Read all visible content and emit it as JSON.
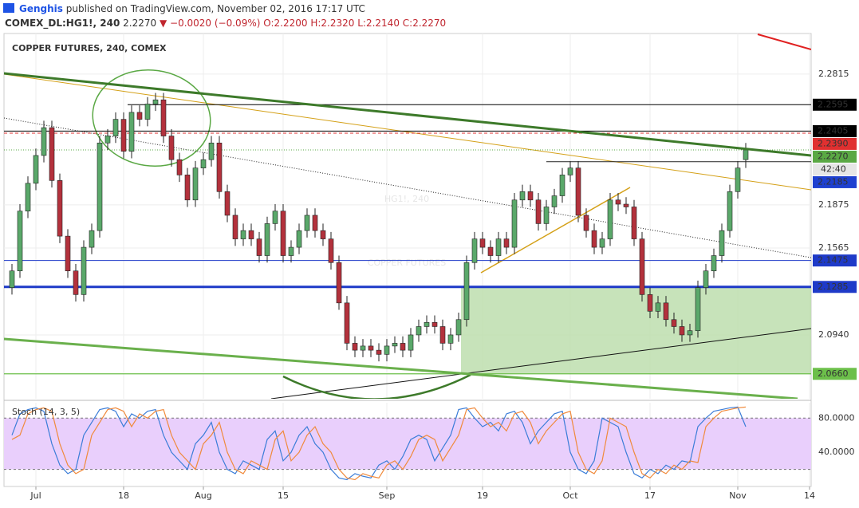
{
  "header": {
    "author": "Genghis",
    "published": "published on TradingView.com, November 02, 2016 17:17 UTC",
    "symbol": "COMEX_DL:HG1!, 240",
    "last": "2.2270",
    "change": "▼ −0.0020 (−0.09%)",
    "ohlc": [
      "O:2.2200",
      "H:2.2320",
      "L:2.2140",
      "C:2.2270"
    ]
  },
  "chart_data": [
    {
      "type": "candlestick",
      "title": "COPPER FUTURES, 240, COMEX",
      "watermark": [
        "HG1!, 240",
        "COPPER FUTURES"
      ],
      "categories": [
        null,
        null,
        null,
        "Jul",
        null,
        null,
        null,
        null,
        null,
        null,
        null,
        null,
        null,
        null,
        "18",
        null,
        null,
        null,
        null,
        null,
        null,
        null,
        null,
        null,
        "Aug",
        null,
        null,
        null,
        null,
        null,
        null,
        null,
        null,
        null,
        "15",
        null,
        null,
        null,
        null,
        null,
        null,
        null,
        null,
        null,
        null,
        null,
        null,
        "Sep",
        null,
        null,
        null,
        null,
        null,
        null,
        null,
        null,
        null,
        null,
        null,
        "19",
        null,
        null,
        null,
        null,
        null,
        null,
        null,
        null,
        null,
        null,
        "Oct",
        null,
        null,
        null,
        null,
        null,
        null,
        null,
        null,
        null,
        "17",
        null,
        null,
        null,
        null,
        null,
        null,
        null,
        null,
        null,
        null,
        "Nov",
        null,
        null,
        null,
        null,
        null,
        null,
        null,
        null,
        "14"
      ],
      "open": [
        2.128,
        2.14,
        2.183,
        2.203,
        2.223,
        2.243,
        2.205,
        2.165,
        2.14,
        2.123,
        2.157,
        2.169,
        2.232,
        2.237,
        2.249,
        2.226,
        2.254,
        2.249,
        2.26,
        2.263,
        2.237,
        2.22,
        2.209,
        2.191,
        2.214,
        2.22,
        2.232,
        2.197,
        2.18,
        2.163,
        2.169,
        2.163,
        2.151,
        2.174,
        2.183,
        2.151,
        2.157,
        2.169,
        2.18,
        2.169,
        2.163,
        2.146,
        2.117,
        2.088,
        2.083,
        2.086,
        2.083,
        2.08,
        2.086,
        2.088,
        2.083,
        2.094,
        2.1,
        2.103,
        2.1,
        2.088,
        2.094,
        2.105,
        2.146,
        2.163,
        2.157,
        2.151,
        2.163,
        2.157,
        2.191,
        2.197,
        2.191,
        2.174,
        2.186,
        2.194,
        2.209,
        2.214,
        2.18,
        2.169,
        2.157,
        2.163,
        2.191,
        2.188,
        2.186,
        2.163,
        2.123,
        2.111,
        2.117,
        2.105,
        2.1,
        2.094,
        2.097,
        2.128,
        2.14,
        2.151,
        2.169,
        2.197,
        2.22,
        null,
        null,
        null,
        null,
        null,
        null,
        null,
        null
      ],
      "high": [
        2.145,
        2.188,
        2.208,
        2.228,
        2.248,
        2.248,
        2.21,
        2.17,
        2.145,
        2.162,
        2.174,
        2.237,
        2.242,
        2.254,
        2.254,
        2.259,
        2.259,
        2.265,
        2.268,
        2.268,
        2.242,
        2.225,
        2.214,
        2.219,
        2.225,
        2.237,
        2.237,
        2.202,
        2.185,
        2.174,
        2.174,
        2.168,
        2.179,
        2.188,
        2.188,
        2.162,
        2.174,
        2.185,
        2.185,
        2.174,
        2.168,
        2.151,
        2.122,
        2.093,
        2.091,
        2.091,
        2.088,
        2.091,
        2.093,
        2.093,
        2.099,
        2.105,
        2.108,
        2.108,
        2.105,
        2.099,
        2.11,
        2.151,
        2.168,
        2.168,
        2.162,
        2.168,
        2.168,
        2.196,
        2.202,
        2.202,
        2.196,
        2.191,
        2.199,
        2.214,
        2.219,
        2.219,
        2.185,
        2.174,
        2.168,
        2.196,
        2.196,
        2.193,
        2.191,
        2.168,
        2.128,
        2.122,
        2.122,
        2.11,
        2.105,
        2.102,
        2.133,
        2.145,
        2.156,
        2.174,
        2.202,
        2.219,
        2.232,
        null,
        null,
        null,
        null,
        null,
        null,
        null,
        null
      ],
      "low": [
        2.123,
        2.135,
        2.178,
        2.198,
        2.218,
        2.2,
        2.16,
        2.135,
        2.118,
        2.118,
        2.152,
        2.164,
        2.227,
        2.232,
        2.221,
        2.221,
        2.244,
        2.244,
        2.255,
        2.232,
        2.215,
        2.204,
        2.186,
        2.186,
        2.209,
        2.215,
        2.192,
        2.175,
        2.158,
        2.158,
        2.158,
        2.146,
        2.146,
        2.169,
        2.146,
        2.146,
        2.152,
        2.164,
        2.164,
        2.158,
        2.141,
        2.112,
        2.083,
        2.078,
        2.078,
        2.078,
        2.075,
        2.075,
        2.081,
        2.078,
        2.078,
        2.089,
        2.095,
        2.095,
        2.083,
        2.083,
        2.089,
        2.1,
        2.141,
        2.152,
        2.146,
        2.146,
        2.152,
        2.152,
        2.186,
        2.186,
        2.169,
        2.169,
        2.181,
        2.189,
        2.204,
        2.175,
        2.164,
        2.152,
        2.152,
        2.158,
        2.183,
        2.181,
        2.158,
        2.118,
        2.106,
        2.106,
        2.1,
        2.095,
        2.089,
        2.089,
        2.092,
        2.123,
        2.135,
        2.146,
        2.164,
        2.192,
        2.214,
        null,
        null,
        null,
        null,
        null,
        null,
        null,
        null
      ],
      "close": [
        2.14,
        2.183,
        2.203,
        2.223,
        2.243,
        2.205,
        2.165,
        2.14,
        2.123,
        2.157,
        2.169,
        2.232,
        2.237,
        2.249,
        2.226,
        2.254,
        2.249,
        2.26,
        2.263,
        2.237,
        2.22,
        2.209,
        2.191,
        2.214,
        2.22,
        2.232,
        2.197,
        2.18,
        2.163,
        2.169,
        2.163,
        2.151,
        2.174,
        2.183,
        2.151,
        2.157,
        2.169,
        2.18,
        2.169,
        2.163,
        2.146,
        2.117,
        2.088,
        2.083,
        2.086,
        2.083,
        2.08,
        2.086,
        2.088,
        2.083,
        2.094,
        2.1,
        2.103,
        2.1,
        2.088,
        2.094,
        2.105,
        2.146,
        2.163,
        2.157,
        2.151,
        2.163,
        2.157,
        2.191,
        2.197,
        2.191,
        2.174,
        2.186,
        2.194,
        2.209,
        2.214,
        2.18,
        2.169,
        2.157,
        2.163,
        2.191,
        2.188,
        2.186,
        2.163,
        2.123,
        2.111,
        2.117,
        2.105,
        2.1,
        2.094,
        2.097,
        2.128,
        2.14,
        2.151,
        2.169,
        2.197,
        2.214,
        2.227,
        null,
        null,
        null,
        null,
        null,
        null,
        null,
        null
      ],
      "up_color": "#5aa86a",
      "down_color": "#b3313c",
      "ylim": [
        2.0481,
        2.3107
      ],
      "yticks": [
        2.2815,
        2.1875,
        2.1565,
        {
          "value": 2.094,
          "label": "2.0940"
        }
      ],
      "grid": true,
      "levels": [
        {
          "value": 2.2595,
          "label": "2.2595",
          "color": "#000000"
        },
        {
          "value": 2.2405,
          "label": "2.2405",
          "color": "#000000"
        },
        {
          "value": 2.239,
          "label": "2.2390",
          "color": "#e03030"
        },
        {
          "value": 2.227,
          "label": "2.2270",
          "color": "#5aa844"
        },
        {
          "value": 2.2185,
          "label": "2.2185",
          "color": "#1e40d0"
        },
        {
          "value": 2.1475,
          "label": "2.1475",
          "color": "#1e3ac8"
        },
        {
          "value": 2.1285,
          "label": "2.1285",
          "color": "#1e3ac8"
        },
        {
          "value": 2.066,
          "label": "2.0660",
          "color": "#6cbf4a"
        }
      ],
      "countdown": "42:40"
    },
    {
      "type": "stochastic",
      "title": "Stoch (14, 3, 5)",
      "series": [
        {
          "color": "#3b7dd8",
          "values": [
            60,
            85,
            90,
            92,
            88,
            50,
            25,
            15,
            20,
            60,
            75,
            90,
            92,
            88,
            70,
            85,
            80,
            88,
            90,
            60,
            40,
            30,
            20,
            50,
            60,
            75,
            40,
            20,
            15,
            30,
            25,
            20,
            55,
            65,
            30,
            40,
            60,
            70,
            50,
            40,
            20,
            10,
            8,
            15,
            12,
            10,
            25,
            30,
            20,
            35,
            55,
            60,
            55,
            30,
            45,
            60,
            90,
            92,
            80,
            70,
            75,
            65,
            85,
            88,
            75,
            50,
            65,
            75,
            85,
            88,
            40,
            20,
            15,
            30,
            80,
            75,
            70,
            40,
            15,
            10,
            20,
            15,
            25,
            20,
            30,
            28,
            70,
            80,
            88,
            90,
            92,
            93,
            70,
            null,
            null,
            null,
            null,
            null,
            null,
            null,
            null
          ]
        },
        {
          "color": "#f08a3c",
          "values": [
            55,
            60,
            85,
            90,
            92,
            88,
            50,
            25,
            15,
            20,
            60,
            75,
            90,
            92,
            88,
            70,
            85,
            80,
            88,
            90,
            60,
            40,
            30,
            20,
            50,
            60,
            75,
            40,
            20,
            15,
            30,
            25,
            20,
            55,
            65,
            30,
            40,
            60,
            70,
            50,
            40,
            20,
            10,
            8,
            15,
            12,
            10,
            25,
            30,
            20,
            35,
            55,
            60,
            55,
            30,
            45,
            60,
            90,
            92,
            80,
            70,
            75,
            65,
            85,
            88,
            75,
            50,
            65,
            75,
            85,
            88,
            40,
            20,
            15,
            30,
            80,
            75,
            70,
            40,
            15,
            10,
            20,
            15,
            25,
            20,
            30,
            28,
            70,
            80,
            88,
            90,
            92,
            93,
            null,
            null,
            null,
            null,
            null,
            null,
            null,
            null
          ]
        }
      ],
      "ylim": [
        0,
        98
      ],
      "yticks": [
        {
          "value": 80,
          "label": "80.0000"
        },
        {
          "value": 40,
          "label": "40.0000"
        }
      ],
      "band": [
        20,
        80
      ],
      "band_color": "#e9cffc"
    }
  ]
}
